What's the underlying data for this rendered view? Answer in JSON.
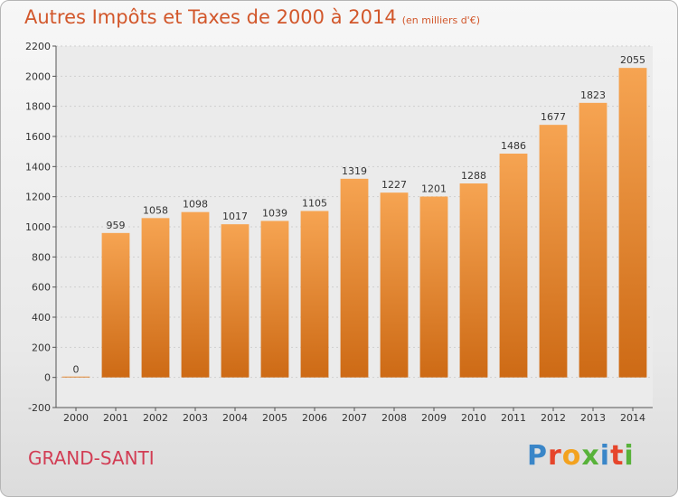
{
  "header": {
    "title": "Autres Impôts et Taxes de 2000 à 2014",
    "unit": "(en milliers d'€)"
  },
  "footer": {
    "commune": "GRAND-SANTI",
    "logo": [
      "P",
      "r",
      "o",
      "x",
      "i",
      "t",
      "i"
    ]
  },
  "colors": {
    "bar_light": "#f6a452",
    "bar_dark": "#cd6a15",
    "title": "#d2572b",
    "commune": "#d23d54"
  },
  "chart_data": {
    "type": "bar",
    "categories": [
      "2000",
      "2001",
      "2002",
      "2003",
      "2004",
      "2005",
      "2006",
      "2007",
      "2008",
      "2009",
      "2010",
      "2011",
      "2012",
      "2013",
      "2014"
    ],
    "values": [
      0,
      959,
      1058,
      1098,
      1017,
      1039,
      1105,
      1319,
      1227,
      1201,
      1288,
      1486,
      1677,
      1823,
      2055
    ],
    "ylim": [
      -200,
      2200
    ],
    "yticks": [
      -200,
      0,
      200,
      400,
      600,
      800,
      1000,
      1200,
      1400,
      1600,
      1800,
      2000,
      2200
    ],
    "grid": true
  }
}
